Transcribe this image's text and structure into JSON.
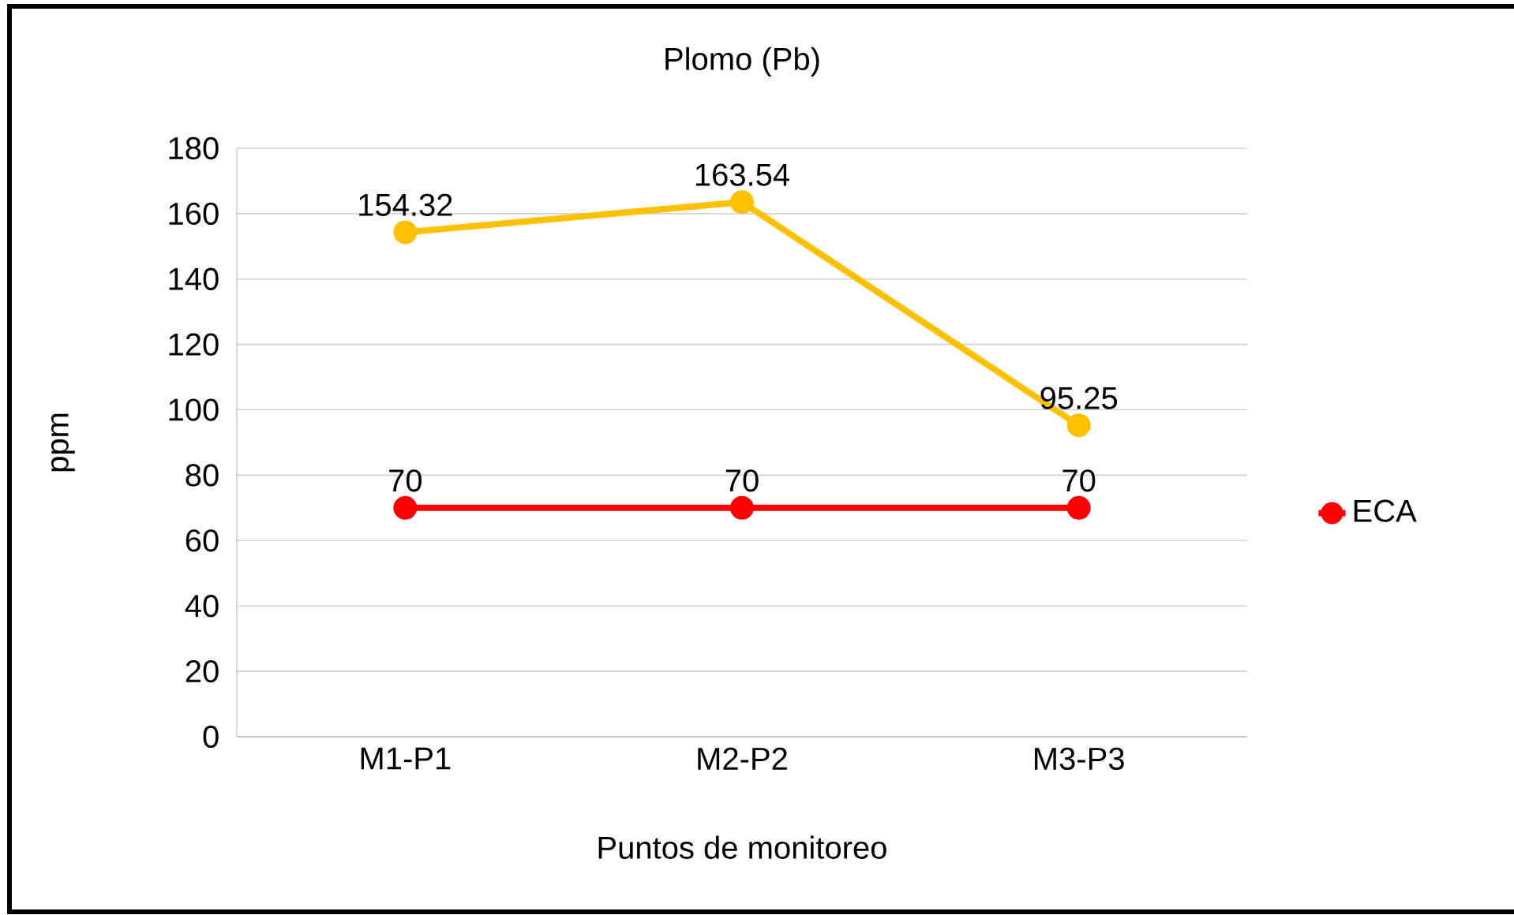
{
  "chart_data": {
    "type": "line",
    "title": "Plomo (Pb)",
    "xlabel": "Puntos de monitoreo",
    "ylabel": "ppm",
    "categories": [
      "M1-P1",
      "M2-P2",
      "M3-P3"
    ],
    "series": [
      {
        "color": "#ffc000",
        "values": [
          154.32,
          163.54,
          95.25
        ]
      },
      {
        "name": "ECA",
        "color": "#ff0000",
        "values": [
          70,
          70,
          70
        ]
      }
    ],
    "ylim": [
      0,
      180
    ],
    "yticks": [
      0,
      20,
      40,
      60,
      80,
      100,
      120,
      140,
      160,
      180
    ],
    "grid": "y",
    "legend": "right",
    "marker": "circle",
    "line_style": "solid",
    "data_labels": true
  }
}
